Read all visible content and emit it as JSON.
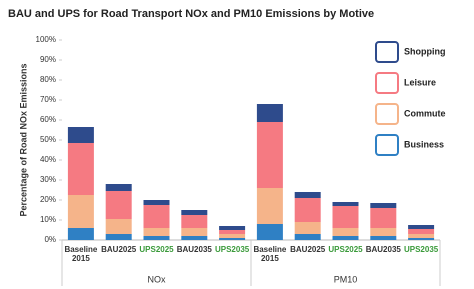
{
  "chart_data": {
    "type": "stacked_bar",
    "title": "BAU and UPS for Road Transport NOx and PM10 Emissions by Motive",
    "y_label": "Percentage of Road NOx Emissions",
    "categories": [
      "Baseline 2015",
      "BAU2025",
      "UPS2025",
      "BAU2035",
      "UPS2035",
      "Baseline 2015",
      "BAU2025",
      "UPS2025",
      "BAU2035",
      "UPS2035"
    ],
    "category_label_colors": [
      "#333333",
      "#333333",
      "#3a9a3a",
      "#333333",
      "#3a9a3a",
      "#333333",
      "#333333",
      "#3a9a3a",
      "#333333",
      "#3a9a3a"
    ],
    "groups": [
      {
        "label": "NOx",
        "size": 5
      },
      {
        "label": "PM10",
        "size": 5
      }
    ],
    "series": [
      {
        "name": "Business",
        "color": "#2f80c4",
        "values": [
          6,
          3,
          2,
          2,
          1,
          8,
          3,
          2,
          2,
          1
        ]
      },
      {
        "name": "Commute",
        "color": "#f5b48a",
        "values": [
          16.5,
          7.5,
          4,
          4,
          2,
          18,
          6,
          4,
          4,
          2
        ]
      },
      {
        "name": "Leisure",
        "color": "#f57a82",
        "values": [
          26,
          14,
          11.5,
          6.5,
          2,
          33,
          12,
          11,
          10,
          2.5
        ]
      },
      {
        "name": "Shopping",
        "color": "#2e4b8c",
        "values": [
          8,
          3.5,
          2.5,
          2.5,
          2,
          9,
          3,
          2,
          2.5,
          2
        ]
      }
    ],
    "ylim": [
      0,
      100
    ],
    "yticks": [
      {
        "value": 0,
        "label": "0%"
      },
      {
        "value": 10,
        "label": "10%"
      },
      {
        "value": 20,
        "label": "20%"
      },
      {
        "value": 30,
        "label": "30%"
      },
      {
        "value": 40,
        "label": "40%"
      },
      {
        "value": 50,
        "label": "50%"
      },
      {
        "value": 60,
        "label": "60%"
      },
      {
        "value": 70,
        "label": "70%"
      },
      {
        "value": 80,
        "label": "80%"
      },
      {
        "value": 90,
        "label": "90%"
      },
      {
        "value": 100,
        "label": "100%"
      }
    ],
    "grid": false
  }
}
